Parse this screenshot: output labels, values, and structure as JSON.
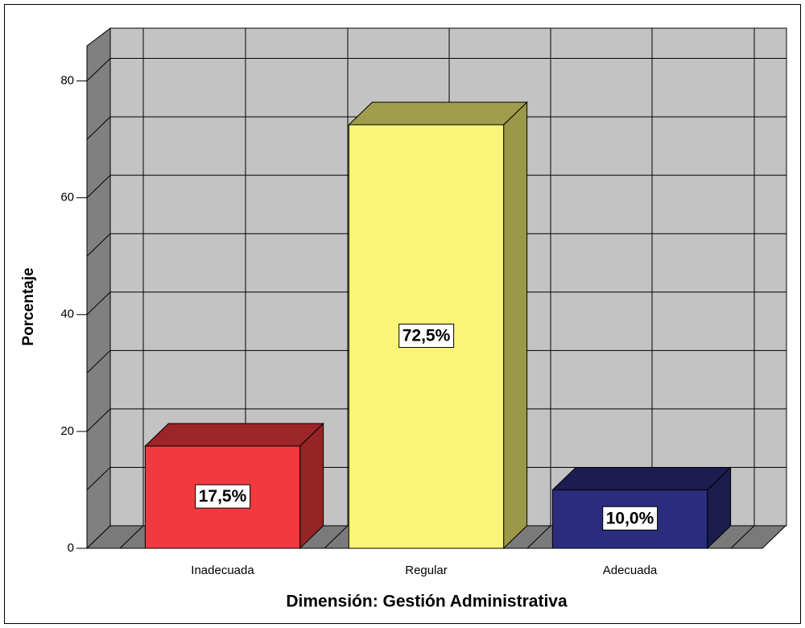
{
  "chart_data": {
    "type": "bar3d",
    "x_label": "Dimensión: Gestión Administrativa",
    "y_label": "Porcentaje",
    "categories": [
      "Inadecuada",
      "Regular",
      "Adecuada"
    ],
    "values": [
      17.5,
      72.5,
      10.0
    ],
    "value_labels": [
      "17,5%",
      "72,5%",
      "10,0%"
    ],
    "colors": [
      "#f23a3e",
      "#faf576",
      "#2b2c7e"
    ],
    "ylim": [
      0,
      86
    ],
    "yticks": [
      0,
      20,
      40,
      60,
      80
    ],
    "grid": true
  }
}
